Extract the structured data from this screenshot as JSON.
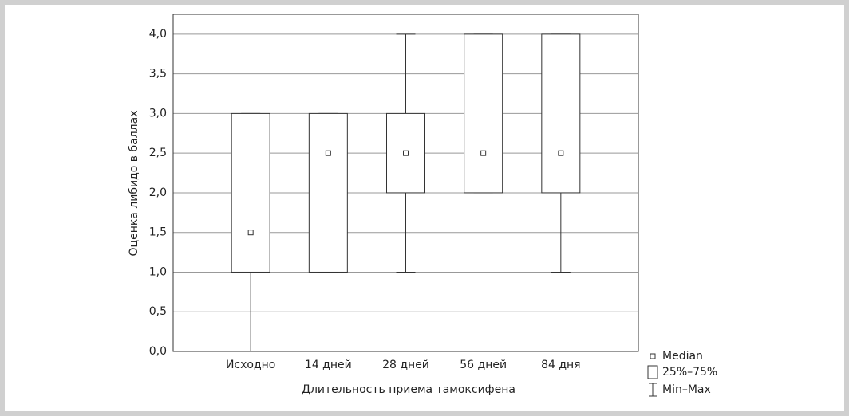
{
  "chart_data": {
    "type": "box",
    "x_label": "Длительность приема тамоксифена",
    "y_label": "Оценка либидо в баллах",
    "categories": [
      "Исходно",
      "14 дней",
      "28 дней",
      "56 дней",
      "84 дня"
    ],
    "min": [
      0,
      1,
      1,
      2,
      1
    ],
    "q1": [
      1,
      1,
      2,
      2,
      2
    ],
    "median": [
      1.5,
      2.5,
      2.5,
      2.5,
      2.5
    ],
    "q3": [
      3,
      3,
      3,
      4,
      4
    ],
    "max": [
      3,
      3,
      4,
      4,
      4
    ],
    "ylim": [
      0,
      4.25
    ],
    "yticks": [
      {
        "value": 0,
        "label": "0,0"
      },
      {
        "value": 0.5,
        "label": "0,5"
      },
      {
        "value": 1,
        "label": "1,0"
      },
      {
        "value": 1.5,
        "label": "1,5"
      },
      {
        "value": 2,
        "label": "2,0"
      },
      {
        "value": 2.5,
        "label": "2,5"
      },
      {
        "value": 3,
        "label": "3,0"
      },
      {
        "value": 3.5,
        "label": "3,5"
      },
      {
        "value": 4,
        "label": "4,0"
      }
    ],
    "grid": true,
    "legend": [
      "Median",
      "25%–75%",
      "Min–Max"
    ]
  }
}
